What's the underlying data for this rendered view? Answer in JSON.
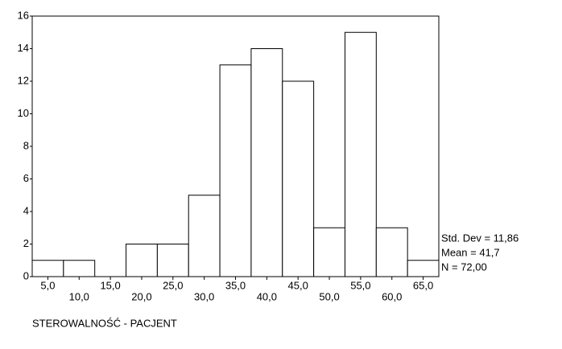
{
  "chart_data": {
    "type": "histogram",
    "bins": [
      2.5,
      7.5,
      12.5,
      17.5,
      22.5,
      27.5,
      32.5,
      37.5,
      42.5,
      47.5,
      52.5,
      57.5,
      62.5,
      67.5
    ],
    "values": [
      1,
      1,
      0,
      2,
      2,
      5,
      13,
      14,
      12,
      3,
      15,
      3,
      1
    ],
    "color": "#ffffff",
    "xlabel": "STEROWALNOŚĆ - PACJENT",
    "xlim": [
      2.5,
      67.5
    ],
    "xticks": [
      {
        "value": 5,
        "label": "5,0"
      },
      {
        "value": 10,
        "label": "10,0"
      },
      {
        "value": 15,
        "label": "15,0"
      },
      {
        "value": 20,
        "label": "20,0"
      },
      {
        "value": 25,
        "label": "25,0"
      },
      {
        "value": 30,
        "label": "30,0"
      },
      {
        "value": 35,
        "label": "35,0"
      },
      {
        "value": 40,
        "label": "40,0"
      },
      {
        "value": 45,
        "label": "45,0"
      },
      {
        "value": 50,
        "label": "50,0"
      },
      {
        "value": 55,
        "label": "55,0"
      },
      {
        "value": 60,
        "label": "60,0"
      },
      {
        "value": 65,
        "label": "65,0"
      }
    ],
    "ylim": [
      0,
      16
    ],
    "yticks": [
      0,
      2,
      4,
      6,
      8,
      10,
      12,
      14,
      16
    ],
    "annotations": [
      "Std. Dev = 11,86",
      "Mean = 41,7",
      "N = 72,00"
    ]
  }
}
